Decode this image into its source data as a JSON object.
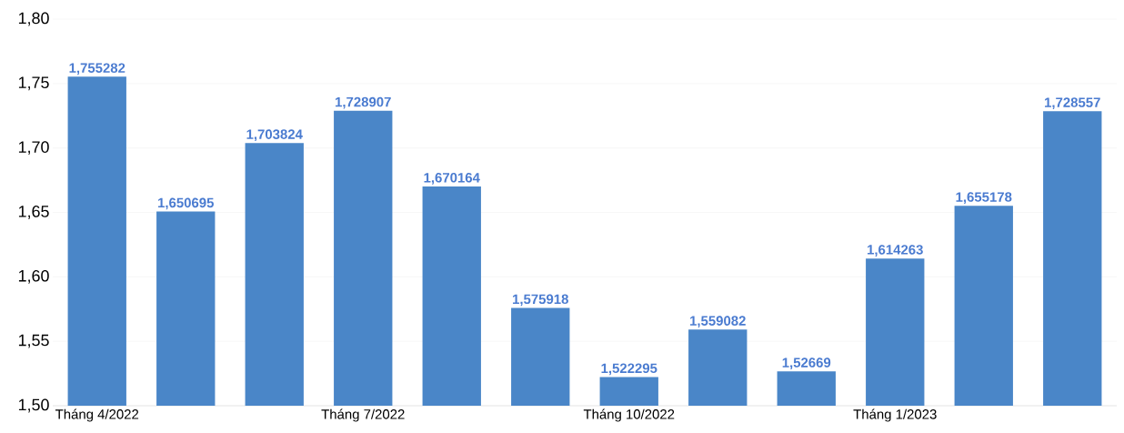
{
  "chart_data": {
    "type": "bar",
    "categories": [
      "Tháng 4/2022",
      null,
      null,
      "Tháng 7/2022",
      null,
      null,
      "Tháng 10/2022",
      null,
      null,
      "Tháng 1/2023",
      null,
      null
    ],
    "values": [
      1.755282,
      1.650695,
      1.703824,
      1.728907,
      1.670164,
      1.575918,
      1.522295,
      1.559082,
      1.52669,
      1.614263,
      1.655178,
      1.728557
    ],
    "value_labels": [
      "1,755282",
      "1,650695",
      "1,703824",
      "1,728907",
      "1,670164",
      "1,575918",
      "1,522295",
      "1,559082",
      "1,52669",
      "1,614263",
      "1,655178",
      "1,728557"
    ],
    "color": "#4a86c8",
    "ylim": [
      1.5,
      1.8
    ],
    "yticks": [
      {
        "value": 1.5,
        "label": "1,50"
      },
      {
        "value": 1.55,
        "label": "1,55"
      },
      {
        "value": 1.6,
        "label": "1,60"
      },
      {
        "value": 1.65,
        "label": "1,65"
      },
      {
        "value": 1.7,
        "label": "1,70"
      },
      {
        "value": 1.75,
        "label": "1,75"
      },
      {
        "value": 1.8,
        "label": "1,80"
      }
    ],
    "grid": "y"
  }
}
